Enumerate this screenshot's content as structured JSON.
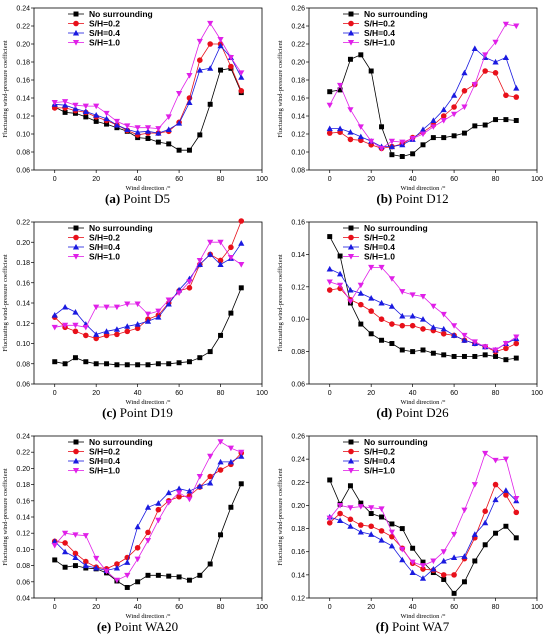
{
  "colors": {
    "no_surrounding": "#000000",
    "s02": "#e8101a",
    "s04": "#1a1ae0",
    "s10": "#e020e8"
  },
  "chart_data": [
    {
      "type": "line",
      "caption_letter": "(a)",
      "caption_text": "Point D5",
      "xlabel": "Wind direction  /°",
      "ylabel": "Fluctuating wind-pressure coefficient",
      "xlim": [
        -10,
        100
      ],
      "ylim": [
        0.06,
        0.24
      ],
      "xticks": [
        0,
        20,
        40,
        60,
        80,
        100
      ],
      "yticks": [
        0.06,
        0.08,
        0.1,
        0.12,
        0.14,
        0.16,
        0.18,
        0.2,
        0.22,
        0.24
      ],
      "ytick_labels": [
        "0.06",
        "0.08",
        "0.10",
        "0.12",
        "0.14",
        "0.16",
        "0.18",
        "0.20",
        "0.22",
        "0.24"
      ],
      "x": [
        0,
        5,
        10,
        15,
        20,
        25,
        30,
        35,
        40,
        45,
        50,
        55,
        60,
        65,
        70,
        75,
        80,
        85,
        90
      ],
      "series": [
        {
          "name": "No surrounding",
          "marker": "square",
          "values": [
            0.13,
            0.124,
            0.123,
            0.119,
            0.114,
            0.111,
            0.107,
            0.103,
            0.096,
            0.095,
            0.091,
            0.089,
            0.082,
            0.082,
            0.099,
            0.133,
            0.171,
            0.173,
            0.146
          ]
        },
        {
          "name": "S/H=0.2",
          "marker": "circle",
          "values": [
            0.129,
            0.129,
            0.126,
            0.124,
            0.119,
            0.115,
            0.11,
            0.104,
            0.099,
            0.101,
            0.101,
            0.103,
            0.113,
            0.14,
            0.182,
            0.2,
            0.2,
            0.175,
            0.148
          ]
        },
        {
          "name": "S/H=0.4",
          "marker": "triangle-up",
          "values": [
            0.133,
            0.132,
            0.128,
            0.125,
            0.121,
            0.117,
            0.11,
            0.105,
            0.102,
            0.103,
            0.101,
            0.105,
            0.112,
            0.135,
            0.171,
            0.173,
            0.198,
            0.185,
            0.163
          ]
        },
        {
          "name": "S/H=1.0",
          "marker": "triangle-down",
          "values": [
            0.135,
            0.136,
            0.132,
            0.131,
            0.131,
            0.123,
            0.114,
            0.109,
            0.107,
            0.107,
            0.106,
            0.119,
            0.145,
            0.165,
            0.203,
            0.223,
            0.205,
            0.185,
            0.168
          ]
        }
      ]
    },
    {
      "type": "line",
      "caption_letter": "(b)",
      "caption_text": "Point D12",
      "xlabel": "Wind direction  /°",
      "ylabel": "Fluctuating wind-pressure coefficient",
      "xlim": [
        -10,
        100
      ],
      "ylim": [
        0.08,
        0.26
      ],
      "xticks": [
        0,
        20,
        40,
        60,
        80,
        100
      ],
      "yticks": [
        0.08,
        0.1,
        0.12,
        0.14,
        0.16,
        0.18,
        0.2,
        0.22,
        0.24,
        0.26
      ],
      "ytick_labels": [
        "0.08",
        "0.10",
        "0.12",
        "0.14",
        "0.16",
        "0.18",
        "0.20",
        "0.22",
        "0.24",
        "0.26"
      ],
      "x": [
        0,
        5,
        10,
        15,
        20,
        25,
        30,
        35,
        40,
        45,
        50,
        55,
        60,
        65,
        70,
        75,
        80,
        85,
        90
      ],
      "series": [
        {
          "name": "No surrounding",
          "marker": "square",
          "values": [
            0.167,
            0.169,
            0.203,
            0.208,
            0.19,
            0.128,
            0.097,
            0.095,
            0.098,
            0.108,
            0.116,
            0.116,
            0.118,
            0.121,
            0.129,
            0.13,
            0.136,
            0.136,
            0.135
          ]
        },
        {
          "name": "S/H=0.2",
          "marker": "circle",
          "values": [
            0.121,
            0.122,
            0.114,
            0.113,
            0.108,
            0.104,
            0.106,
            0.109,
            0.116,
            0.122,
            0.13,
            0.14,
            0.15,
            0.168,
            0.175,
            0.19,
            0.188,
            0.163,
            0.161
          ]
        },
        {
          "name": "S/H=0.4",
          "marker": "triangle-up",
          "values": [
            0.126,
            0.126,
            0.122,
            0.117,
            0.112,
            0.106,
            0.106,
            0.108,
            0.114,
            0.125,
            0.135,
            0.147,
            0.163,
            0.188,
            0.215,
            0.205,
            0.2,
            0.205,
            0.171
          ]
        },
        {
          "name": "S/H=1.0",
          "marker": "triangle-down",
          "values": [
            0.152,
            0.174,
            0.147,
            0.128,
            0.112,
            0.104,
            0.112,
            0.111,
            0.115,
            0.12,
            0.128,
            0.135,
            0.142,
            0.15,
            0.175,
            0.208,
            0.222,
            0.242,
            0.24
          ]
        }
      ]
    },
    {
      "type": "line",
      "caption_letter": "(c)",
      "caption_text": "Point D19",
      "xlabel": "Wind direction  /°",
      "ylabel": "Fluctuating wind-pressure coefficient",
      "xlim": [
        -10,
        100
      ],
      "ylim": [
        0.06,
        0.22
      ],
      "xticks": [
        0,
        20,
        40,
        60,
        80,
        100
      ],
      "yticks": [
        0.06,
        0.08,
        0.1,
        0.12,
        0.14,
        0.16,
        0.18,
        0.2,
        0.22
      ],
      "ytick_labels": [
        "0.06",
        "0.08",
        "0.10",
        "0.12",
        "0.14",
        "0.16",
        "0.18",
        "0.20",
        "0.22"
      ],
      "x": [
        0,
        5,
        10,
        15,
        20,
        25,
        30,
        35,
        40,
        45,
        50,
        55,
        60,
        65,
        70,
        75,
        80,
        85,
        90
      ],
      "series": [
        {
          "name": "No surrounding",
          "marker": "square",
          "values": [
            0.082,
            0.08,
            0.086,
            0.082,
            0.08,
            0.08,
            0.079,
            0.079,
            0.079,
            0.079,
            0.08,
            0.08,
            0.081,
            0.082,
            0.086,
            0.092,
            0.108,
            0.13,
            0.155
          ]
        },
        {
          "name": "S/H=0.2",
          "marker": "circle",
          "values": [
            0.126,
            0.116,
            0.112,
            0.108,
            0.105,
            0.108,
            0.109,
            0.112,
            0.115,
            0.124,
            0.128,
            0.14,
            0.152,
            0.155,
            0.178,
            0.188,
            0.182,
            0.195,
            0.221
          ]
        },
        {
          "name": "S/H=0.4",
          "marker": "triangle-up",
          "values": [
            0.128,
            0.136,
            0.131,
            0.119,
            0.109,
            0.112,
            0.114,
            0.117,
            0.119,
            0.122,
            0.126,
            0.139,
            0.153,
            0.164,
            0.178,
            0.188,
            0.178,
            0.184,
            0.199
          ]
        },
        {
          "name": "S/H=1.0",
          "marker": "triangle-down",
          "values": [
            0.116,
            0.118,
            0.118,
            0.116,
            0.136,
            0.136,
            0.136,
            0.139,
            0.139,
            0.129,
            0.132,
            0.143,
            0.15,
            0.161,
            0.182,
            0.2,
            0.2,
            0.185,
            0.178
          ]
        }
      ]
    },
    {
      "type": "line",
      "caption_letter": "(d)",
      "caption_text": "Point D26",
      "xlabel": "Wind direction  /°",
      "ylabel": "Fluctuating wind-pressure coefficient",
      "xlim": [
        -10,
        100
      ],
      "ylim": [
        0.06,
        0.16
      ],
      "xticks": [
        0,
        20,
        40,
        60,
        80,
        100
      ],
      "yticks": [
        0.06,
        0.08,
        0.1,
        0.12,
        0.14,
        0.16
      ],
      "ytick_labels": [
        "0.06",
        "0.08",
        "0.10",
        "0.12",
        "0.14",
        "0.16"
      ],
      "x": [
        0,
        5,
        10,
        15,
        20,
        25,
        30,
        35,
        40,
        45,
        50,
        55,
        60,
        65,
        70,
        75,
        80,
        85,
        90
      ],
      "series": [
        {
          "name": "No surrounding",
          "marker": "square",
          "values": [
            0.151,
            0.139,
            0.11,
            0.097,
            0.091,
            0.087,
            0.085,
            0.081,
            0.08,
            0.081,
            0.079,
            0.078,
            0.077,
            0.077,
            0.077,
            0.078,
            0.077,
            0.075,
            0.076
          ]
        },
        {
          "name": "S/H=0.2",
          "marker": "circle",
          "values": [
            0.118,
            0.119,
            0.112,
            0.109,
            0.105,
            0.1,
            0.097,
            0.096,
            0.096,
            0.094,
            0.093,
            0.091,
            0.09,
            0.087,
            0.085,
            0.083,
            0.08,
            0.082,
            0.085
          ]
        },
        {
          "name": "S/H=0.4",
          "marker": "triangle-up",
          "values": [
            0.131,
            0.128,
            0.118,
            0.116,
            0.113,
            0.11,
            0.108,
            0.102,
            0.102,
            0.1,
            0.095,
            0.094,
            0.09,
            0.087,
            0.085,
            0.083,
            0.081,
            0.085,
            0.088
          ]
        },
        {
          "name": "S/H=1.0",
          "marker": "triangle-down",
          "values": [
            0.123,
            0.121,
            0.111,
            0.121,
            0.132,
            0.132,
            0.125,
            0.117,
            0.115,
            0.114,
            0.108,
            0.103,
            0.096,
            0.09,
            0.086,
            0.083,
            0.081,
            0.085,
            0.089
          ]
        }
      ]
    },
    {
      "type": "line",
      "caption_letter": "(e)",
      "caption_text": "Point WA20",
      "xlabel": "Wind direction  /°",
      "ylabel": "Fluctuating wind-pressure coefficient",
      "xlim": [
        -10,
        100
      ],
      "ylim": [
        0.04,
        0.24
      ],
      "xticks": [
        0,
        20,
        40,
        60,
        80,
        100
      ],
      "yticks": [
        0.04,
        0.06,
        0.08,
        0.1,
        0.12,
        0.14,
        0.16,
        0.18,
        0.2,
        0.22,
        0.24
      ],
      "ytick_labels": [
        "0.04",
        "0.06",
        "0.08",
        "0.10",
        "0.12",
        "0.14",
        "0.16",
        "0.18",
        "0.20",
        "0.22",
        "0.24"
      ],
      "x": [
        0,
        5,
        10,
        15,
        20,
        25,
        30,
        35,
        40,
        45,
        50,
        55,
        60,
        65,
        70,
        75,
        80,
        85,
        90
      ],
      "series": [
        {
          "name": "No surrounding",
          "marker": "square",
          "values": [
            0.087,
            0.078,
            0.08,
            0.077,
            0.076,
            0.071,
            0.061,
            0.053,
            0.06,
            0.068,
            0.068,
            0.067,
            0.066,
            0.062,
            0.068,
            0.082,
            0.118,
            0.152,
            0.181
          ]
        },
        {
          "name": "S/H=0.2",
          "marker": "circle",
          "values": [
            0.11,
            0.108,
            0.095,
            0.085,
            0.078,
            0.076,
            0.082,
            0.09,
            0.102,
            0.121,
            0.149,
            0.16,
            0.165,
            0.166,
            0.177,
            0.19,
            0.198,
            0.205,
            0.219
          ]
        },
        {
          "name": "S/H=0.4",
          "marker": "triangle-up",
          "values": [
            0.11,
            0.097,
            0.09,
            0.08,
            0.077,
            0.074,
            0.077,
            0.084,
            0.128,
            0.152,
            0.157,
            0.17,
            0.175,
            0.172,
            0.178,
            0.182,
            0.208,
            0.208,
            0.215
          ]
        },
        {
          "name": "S/H=1.0",
          "marker": "triangle-down",
          "values": [
            0.105,
            0.12,
            0.118,
            0.117,
            0.089,
            0.073,
            0.062,
            0.068,
            0.088,
            0.111,
            0.136,
            0.158,
            0.17,
            0.162,
            0.19,
            0.215,
            0.233,
            0.225,
            0.22
          ]
        }
      ]
    },
    {
      "type": "line",
      "caption_letter": "(f)",
      "caption_text": "Point WA7",
      "xlabel": "Wind direction  /°",
      "ylabel": "Fluctuating wind-pressure coefficient",
      "xlim": [
        -10,
        100
      ],
      "ylim": [
        0.12,
        0.26
      ],
      "xticks": [
        0,
        20,
        40,
        60,
        80,
        100
      ],
      "yticks": [
        0.12,
        0.14,
        0.16,
        0.18,
        0.2,
        0.22,
        0.24,
        0.26
      ],
      "ytick_labels": [
        "0.12",
        "0.14",
        "0.16",
        "0.18",
        "0.20",
        "0.22",
        "0.24",
        "0.26"
      ],
      "x": [
        0,
        5,
        10,
        15,
        20,
        25,
        30,
        35,
        40,
        45,
        50,
        55,
        60,
        65,
        70,
        75,
        80,
        85,
        90
      ],
      "series": [
        {
          "name": "No surrounding",
          "marker": "square",
          "values": [
            0.222,
            0.201,
            0.217,
            0.202,
            0.193,
            0.19,
            0.184,
            0.18,
            0.163,
            0.151,
            0.142,
            0.136,
            0.124,
            0.134,
            0.152,
            0.166,
            0.176,
            0.182,
            0.172
          ]
        },
        {
          "name": "S/H=0.2",
          "marker": "circle",
          "values": [
            0.185,
            0.193,
            0.188,
            0.183,
            0.182,
            0.178,
            0.173,
            0.163,
            0.15,
            0.145,
            0.144,
            0.14,
            0.14,
            0.154,
            0.172,
            0.195,
            0.218,
            0.209,
            0.194
          ]
        },
        {
          "name": "S/H=0.4",
          "marker": "triangle-up",
          "values": [
            0.19,
            0.187,
            0.182,
            0.177,
            0.175,
            0.17,
            0.165,
            0.153,
            0.142,
            0.137,
            0.145,
            0.152,
            0.155,
            0.156,
            0.175,
            0.185,
            0.205,
            0.213,
            0.204
          ]
        },
        {
          "name": "S/H=1.0",
          "marker": "triangle-down",
          "values": [
            0.189,
            0.2,
            0.198,
            0.199,
            0.198,
            0.197,
            0.177,
            0.162,
            0.151,
            0.148,
            0.152,
            0.16,
            0.175,
            0.196,
            0.218,
            0.245,
            0.239,
            0.24,
            0.206
          ]
        }
      ]
    }
  ]
}
